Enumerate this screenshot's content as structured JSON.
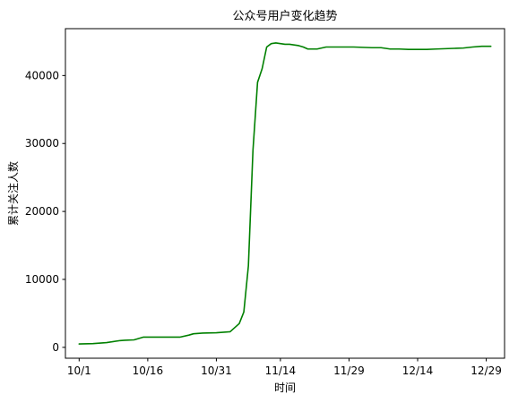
{
  "chart_data": {
    "type": "line",
    "title": "公众号用户变化趋势",
    "xlabel": "时间",
    "ylabel": "累计关注人数",
    "x_ticks": [
      "10/1",
      "10/16",
      "10/31",
      "11/14",
      "11/29",
      "12/14",
      "12/29"
    ],
    "y_ticks": [
      "0",
      "10000",
      "20000",
      "30000",
      "40000"
    ],
    "xlim": [
      -3,
      93
    ],
    "ylim": [
      -1600,
      46900
    ],
    "grid": false,
    "series": [
      {
        "color": "#008000",
        "x": [
          0,
          3,
          6,
          9,
          10,
          12,
          14,
          15,
          16,
          18,
          20,
          22,
          24,
          25,
          27,
          30,
          33,
          35,
          36,
          37,
          38,
          39,
          40,
          41,
          42,
          43,
          44,
          45,
          46,
          47,
          48,
          49,
          50,
          52,
          54,
          56,
          58,
          60,
          62,
          64,
          66,
          68,
          70,
          72,
          74,
          76,
          78,
          80,
          82,
          84,
          86,
          88,
          90
        ],
        "y": [
          500,
          550,
          700,
          1000,
          1050,
          1100,
          1500,
          1500,
          1500,
          1500,
          1500,
          1500,
          1800,
          2000,
          2100,
          2150,
          2300,
          3500,
          5200,
          12000,
          29000,
          39000,
          41000,
          44200,
          44700,
          44800,
          44700,
          44600,
          44600,
          44500,
          44400,
          44200,
          43900,
          43900,
          44200,
          44200,
          44200,
          44200,
          44150,
          44100,
          44100,
          43900,
          43900,
          43850,
          43850,
          43850,
          43900,
          43950,
          44000,
          44050,
          44200,
          44300,
          44300
        ]
      }
    ]
  }
}
